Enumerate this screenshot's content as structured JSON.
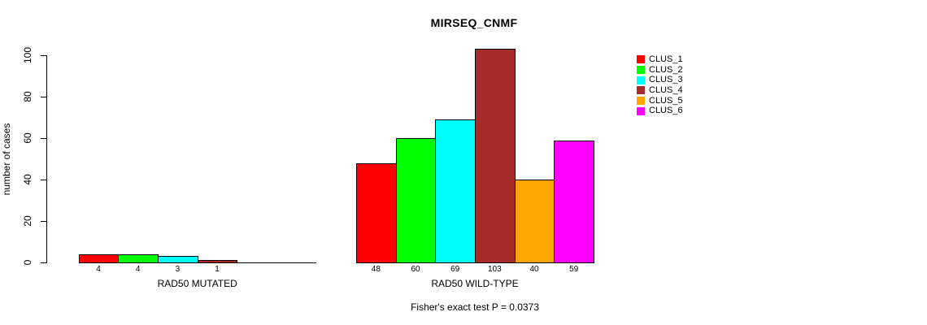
{
  "chart_data": {
    "type": "bar",
    "title": "MIRSEQ_CNMF",
    "subtitle": "Fisher's exact test P = 0.0373",
    "ylabel": "number of cases",
    "xlabel": "",
    "ylim": [
      0,
      100
    ],
    "yticks": [
      0,
      20,
      40,
      60,
      80,
      100
    ],
    "grid": false,
    "categories": [
      "RAD50 MUTATED",
      "RAD50 WILD-TYPE"
    ],
    "series": [
      {
        "name": "CLUS_1",
        "color": "#FF0000",
        "values": [
          4,
          48
        ]
      },
      {
        "name": "CLUS_2",
        "color": "#00FF00",
        "values": [
          4,
          60
        ]
      },
      {
        "name": "CLUS_3",
        "color": "#00FFFF",
        "values": [
          3,
          69
        ]
      },
      {
        "name": "CLUS_4",
        "color": "#A52A2A",
        "values": [
          1,
          103
        ]
      },
      {
        "name": "CLUS_5",
        "color": "#FFA500",
        "values": [
          0,
          40
        ]
      },
      {
        "name": "CLUS_6",
        "color": "#FF00FF",
        "values": [
          0,
          59
        ]
      }
    ],
    "bar_labels": [
      [
        "4",
        "4",
        "3",
        "1",
        "",
        ""
      ],
      [
        "48",
        "60",
        "69",
        "103",
        "40",
        "59"
      ]
    ],
    "legend": {
      "position": "right",
      "entries": [
        "CLUS_1",
        "CLUS_2",
        "CLUS_3",
        "CLUS_4",
        "CLUS_5",
        "CLUS_6"
      ]
    },
    "colors": {
      "background": "#FFFFFF",
      "axis": "#000000",
      "bar_border": "#000000"
    }
  }
}
